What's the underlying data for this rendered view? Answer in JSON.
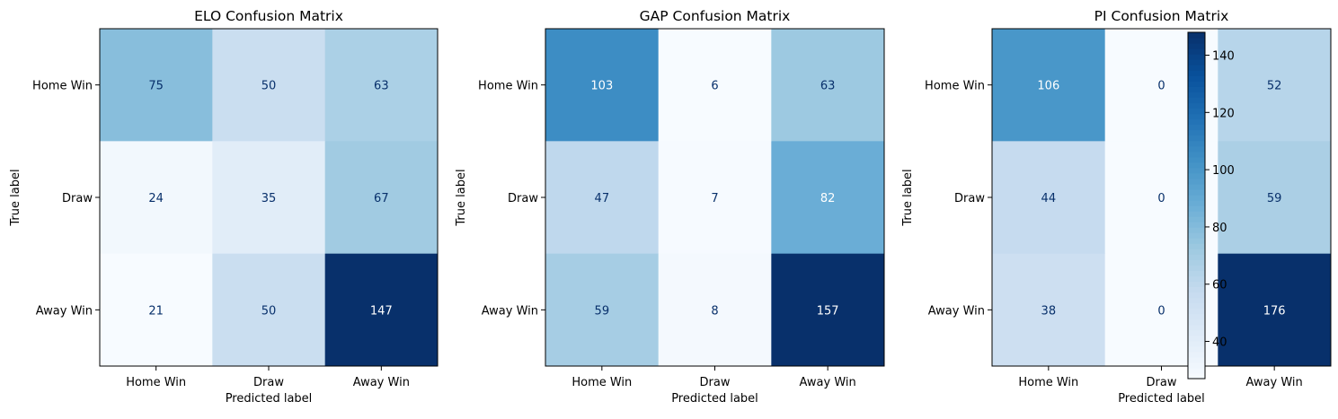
{
  "chart_data": [
    {
      "type": "heatmap",
      "title": "ELO Confusion Matrix",
      "xlabel": "Predicted label",
      "ylabel": "True label",
      "x_categories": [
        "Home Win",
        "Draw",
        "Away Win"
      ],
      "y_categories": [
        "Home Win",
        "Draw",
        "Away Win"
      ],
      "values": [
        [
          75,
          50,
          63
        ],
        [
          24,
          35,
          67
        ],
        [
          21,
          50,
          147
        ]
      ],
      "colormap": "Blues"
    },
    {
      "type": "heatmap",
      "title": "GAP Confusion Matrix",
      "xlabel": "Predicted label",
      "ylabel": "True label",
      "x_categories": [
        "Home Win",
        "Draw",
        "Away Win"
      ],
      "y_categories": [
        "Home Win",
        "Draw",
        "Away Win"
      ],
      "values": [
        [
          103,
          6,
          63
        ],
        [
          47,
          7,
          82
        ],
        [
          59,
          8,
          157
        ]
      ],
      "colormap": "Blues"
    },
    {
      "type": "heatmap",
      "title": "PI Confusion Matrix",
      "xlabel": "Predicted label",
      "ylabel": "True label",
      "x_categories": [
        "Home Win",
        "Draw",
        "Away Win"
      ],
      "y_categories": [
        "Home Win",
        "Draw",
        "Away Win"
      ],
      "values": [
        [
          106,
          0,
          52
        ],
        [
          44,
          0,
          59
        ],
        [
          38,
          0,
          176
        ]
      ],
      "colormap": "Blues",
      "colorbar": {
        "ticks": [
          40,
          60,
          80,
          100,
          120,
          140
        ],
        "range": [
          27,
          148
        ]
      }
    }
  ]
}
